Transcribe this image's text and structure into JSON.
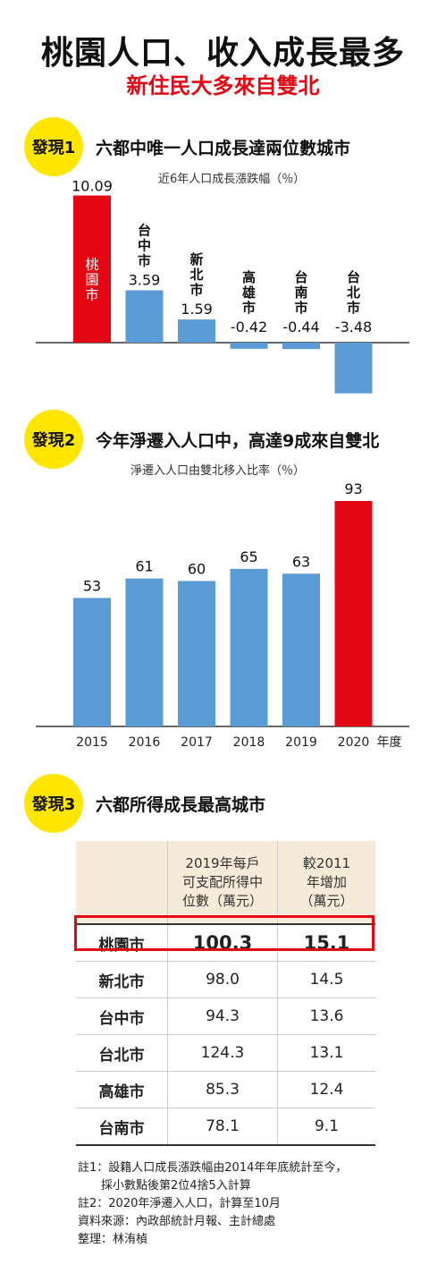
{
  "title": "桃園人口、收入成長最多",
  "subtitle": "新住民大多來自雙北",
  "findings": [
    {
      "badge": "發現1",
      "text": "六都中唯一人口成長達兩位數城市"
    },
    {
      "badge": "發現2",
      "text": "今年淨遷入人口中，高達9成來自雙北"
    },
    {
      "badge": "發現3",
      "text": "六都所得成長最高城市"
    }
  ],
  "colors": {
    "highlight": "#e30613",
    "bar": "#5b9bd5",
    "badge": "#ffe600",
    "header_bg": "#f6ead8"
  },
  "chart_data": [
    {
      "type": "bar",
      "title": "近6年人口成長漲跌幅（％）",
      "categories": [
        "桃園市",
        "台中市",
        "新北市",
        "高雄市",
        "台南市",
        "台北市"
      ],
      "values": [
        10.09,
        3.59,
        1.59,
        -0.42,
        -0.44,
        -3.48
      ],
      "value_labels": [
        "10.09",
        "3.59",
        "1.59",
        "-0.42",
        "-0.44",
        "-3.48"
      ],
      "highlight_index": 0
    },
    {
      "type": "bar",
      "title": "淨遷入人口由雙北移入比率（％）",
      "categories": [
        "2015",
        "2016",
        "2017",
        "2018",
        "2019",
        "2020"
      ],
      "values": [
        53,
        61,
        60,
        65,
        63,
        93
      ],
      "x_suffix": "年度",
      "highlight_index": 5
    },
    {
      "type": "table",
      "headers": [
        "",
        "2019年每戶\n可支配所得中\n位數（萬元）",
        "較2011\n年增加\n（萬元）"
      ],
      "rows": [
        [
          "桃園市",
          "100.3",
          "15.1"
        ],
        [
          "新北市",
          "98.0",
          "14.5"
        ],
        [
          "台中市",
          "94.3",
          "13.6"
        ],
        [
          "台北市",
          "124.3",
          "13.1"
        ],
        [
          "高雄市",
          "85.3",
          "12.4"
        ],
        [
          "台南市",
          "78.1",
          "9.1"
        ]
      ],
      "highlight_row": 0
    }
  ],
  "notes": [
    "註1：設籍人口成長漲跌幅由2014年年底統計至今，",
    "　　採小數點後第2位4捨5入計算",
    "註2：2020年淨遷入人口，計算至10月",
    "資料來源：內政部統計月報、主計總處",
    "整理：林洧楨"
  ]
}
